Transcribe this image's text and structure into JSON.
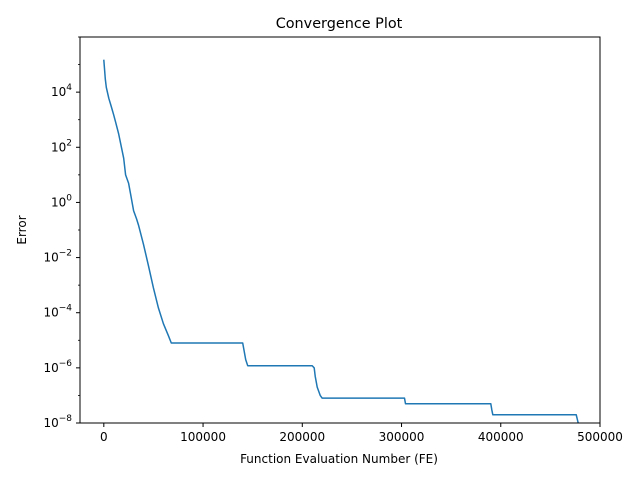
{
  "chart_data": {
    "type": "line",
    "title": "Convergence Plot",
    "xlabel": "Function Evaluation Number (FE)",
    "ylabel": "Error",
    "yscale": "log",
    "xlim": [
      -24000,
      500000
    ],
    "ylim": [
      1e-08,
      1000000.0
    ],
    "grid": false,
    "line_color": "#1f77b4",
    "x_ticks": [
      {
        "value": 0,
        "label": "0"
      },
      {
        "value": 100000,
        "label": "100000"
      },
      {
        "value": 200000,
        "label": "200000"
      },
      {
        "value": 300000,
        "label": "300000"
      },
      {
        "value": 400000,
        "label": "400000"
      },
      {
        "value": 500000,
        "label": "500000"
      }
    ],
    "y_ticks": [
      {
        "exp": 4,
        "label_base": "10",
        "label_exp": "4"
      },
      {
        "exp": 2,
        "label_base": "10",
        "label_exp": "2"
      },
      {
        "exp": 0,
        "label_base": "10",
        "label_exp": "0"
      },
      {
        "exp": -2,
        "label_base": "10",
        "label_exp": "−2"
      },
      {
        "exp": -4,
        "label_base": "10",
        "label_exp": "−4"
      },
      {
        "exp": -6,
        "label_base": "10",
        "label_exp": "−6"
      },
      {
        "exp": -8,
        "label_base": "10",
        "label_exp": "−8"
      }
    ],
    "series": [
      {
        "x": [
          0,
          1500,
          2500,
          5000,
          7500,
          10000,
          12000,
          15000,
          20000,
          22000,
          25000,
          27000,
          30000,
          33000,
          35000,
          40000,
          45000,
          50000,
          55000,
          60000,
          65000,
          68000,
          70000,
          140000,
          143000,
          145000,
          210000,
          212000,
          213000,
          215000,
          218000,
          220000,
          303000,
          304000,
          390000,
          391000,
          392000,
          476000,
          478000
        ],
        "y": [
          150000,
          30000,
          15000,
          6000,
          3000,
          1500,
          800,
          300,
          40,
          10,
          5,
          2,
          0.5,
          0.25,
          0.15,
          0.03,
          0.005,
          0.0008,
          0.00015,
          4e-05,
          1.5e-05,
          8e-06,
          8e-06,
          8e-06,
          2e-06,
          1.2e-06,
          1.2e-06,
          1e-06,
          5e-07,
          2e-07,
          1e-07,
          8e-08,
          8e-08,
          5e-08,
          5e-08,
          3e-08,
          2e-08,
          2e-08,
          8e-09
        ]
      }
    ]
  }
}
